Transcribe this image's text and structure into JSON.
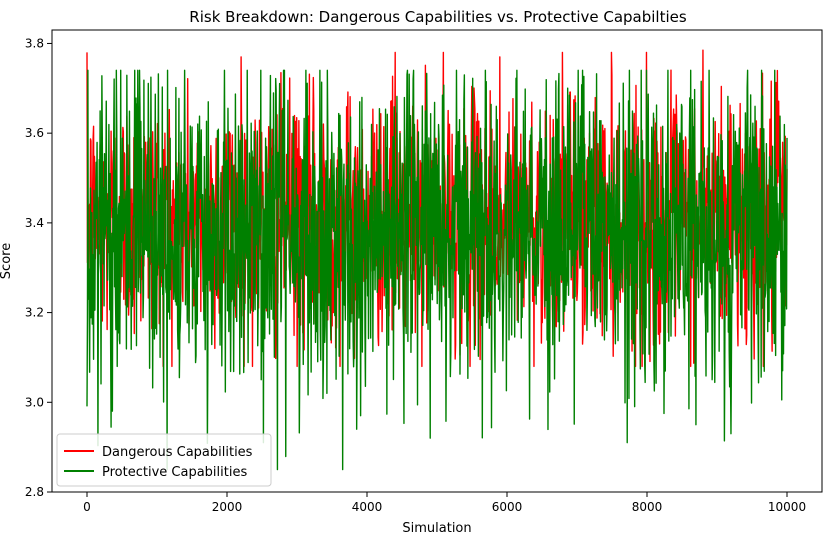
{
  "chart_data": {
    "type": "line",
    "title": "Risk Breakdown: Dangerous Capabilities vs. Protective Capabilties",
    "xlabel": "Simulation",
    "ylabel": "Score",
    "xlim": [
      -500,
      10500
    ],
    "ylim": [
      2.8,
      3.83
    ],
    "xticks": [
      0,
      2000,
      4000,
      6000,
      8000,
      10000
    ],
    "xtick_labels": [
      "0",
      "2000",
      "4000",
      "6000",
      "8000",
      "10000"
    ],
    "yticks": [
      2.8,
      3.0,
      3.2,
      3.4,
      3.6,
      3.8
    ],
    "ytick_labels": [
      "2.8",
      "3.0",
      "3.2",
      "3.4",
      "3.6",
      "3.8"
    ],
    "grid": false,
    "legend_position": "lower-left",
    "x_range": [
      0,
      10000
    ],
    "series": [
      {
        "name": "Dangerous Capabilities",
        "color": "#ff0000",
        "approx_mean": 3.41,
        "approx_min": 3.08,
        "approx_max": 3.78,
        "notable_peaks": [
          {
            "x": 2200,
            "y": 3.77
          },
          {
            "x": 4400,
            "y": 3.78
          },
          {
            "x": 5900,
            "y": 3.77
          },
          {
            "x": 7500,
            "y": 3.73
          },
          {
            "x": 8800,
            "y": 3.785
          }
        ]
      },
      {
        "name": "Protective Capabilities",
        "color": "#008000",
        "approx_mean": 3.38,
        "approx_min": 2.85,
        "approx_max": 3.74,
        "notable_peaks": [
          {
            "x": 680,
            "y": 3.74
          },
          {
            "x": 3650,
            "y": 2.85
          },
          {
            "x": 2520,
            "y": 2.91
          },
          {
            "x": 3850,
            "y": 2.94
          },
          {
            "x": 4900,
            "y": 2.92
          },
          {
            "x": 7720,
            "y": 2.91
          },
          {
            "x": 8700,
            "y": 2.95
          },
          {
            "x": 9200,
            "y": 2.93
          }
        ]
      }
    ]
  }
}
